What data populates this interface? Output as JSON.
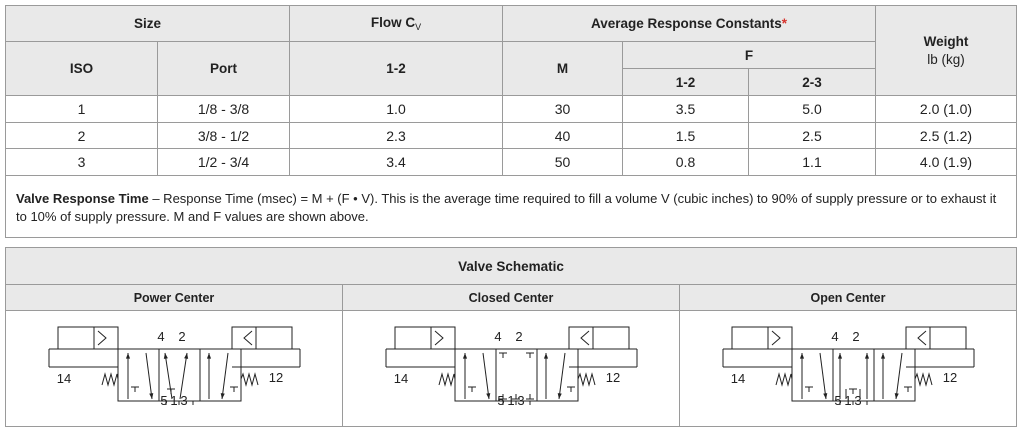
{
  "table": {
    "header": {
      "size": "Size",
      "flow": "Flow C",
      "flow_sub": "V",
      "avg": "Average Response Constants",
      "asterisk": "*",
      "weight": "Weight",
      "weight_unit": "lb (kg)",
      "iso": "ISO",
      "port": "Port",
      "flow_12": "1-2",
      "m": "M",
      "f": "F",
      "f_12": "1-2",
      "f_23": "2-3"
    },
    "rows": [
      [
        "1",
        "1/8 - 3/8",
        "1.0",
        "30",
        "3.5",
        "5.0",
        "2.0 (1.0)"
      ],
      [
        "2",
        "3/8 - 1/2",
        "2.3",
        "40",
        "1.5",
        "2.5",
        "2.5 (1.2)"
      ],
      [
        "3",
        "1/2 - 3/4",
        "3.4",
        "50",
        "0.8",
        "1.1",
        "4.0 (1.9)"
      ]
    ]
  },
  "note": {
    "title": "Valve Response Time",
    "text": "– Response Time (msec) = M + (F • V).  This is the average time required to fill a volume V (cubic inches) to 90% of supply pressure or to exhaust it to 10% of supply pressure.  M and F values are shown above."
  },
  "schematic": {
    "title": "Valve Schematic",
    "panels": [
      {
        "label": "Power Center",
        "ports_top": [
          "4",
          "2"
        ],
        "ports_bottom": [
          "5",
          "1",
          "3"
        ],
        "left": "14",
        "right": "12"
      },
      {
        "label": "Closed Center",
        "ports_top": [
          "4",
          "2"
        ],
        "ports_bottom": [
          "5",
          "1",
          "3"
        ],
        "left": "14",
        "right": "12"
      },
      {
        "label": "Open Center",
        "ports_top": [
          "4",
          "2"
        ],
        "ports_bottom": [
          "5",
          "1",
          "3"
        ],
        "left": "14",
        "right": "12"
      }
    ]
  }
}
